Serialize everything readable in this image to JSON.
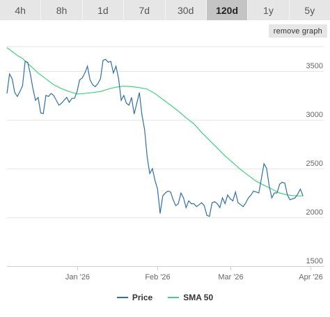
{
  "tabs": [
    {
      "label": "4h",
      "active": false
    },
    {
      "label": "8h",
      "active": false
    },
    {
      "label": "1d",
      "active": false
    },
    {
      "label": "7d",
      "active": false
    },
    {
      "label": "30d",
      "active": false
    },
    {
      "label": "120d",
      "active": true
    },
    {
      "label": "1y",
      "active": false
    },
    {
      "label": "5y",
      "active": false
    }
  ],
  "remove_graph_label": "remove graph",
  "colors": {
    "price": "#2f6fa8",
    "sma": "#3dd47a",
    "grid": "#e6e6e6"
  },
  "chart_data": {
    "type": "line",
    "title": "",
    "xlabel": "",
    "ylabel": "",
    "x_range": [
      "2025-12-05",
      "2026-04-06"
    ],
    "ylim": [
      1500,
      3750
    ],
    "y_ticks": [
      1500,
      2000,
      2500,
      3000,
      3500
    ],
    "x_ticks": [
      {
        "date": "2026-01-01",
        "label": "Jan '26"
      },
      {
        "date": "2026-02-01",
        "label": "Feb '26"
      },
      {
        "date": "2026-03-01",
        "label": "Mar '26"
      },
      {
        "date": "2026-04-01",
        "label": "Apr '26"
      }
    ],
    "grid": true,
    "legend": "bottom",
    "series": [
      {
        "name": "Price",
        "points": [
          [
            "2025-12-05",
            3270
          ],
          [
            "2025-12-06",
            3470
          ],
          [
            "2025-12-07",
            3420
          ],
          [
            "2025-12-08",
            3280
          ],
          [
            "2025-12-09",
            3240
          ],
          [
            "2025-12-10",
            3290
          ],
          [
            "2025-12-11",
            3350
          ],
          [
            "2025-12-12",
            3600
          ],
          [
            "2025-12-13",
            3590
          ],
          [
            "2025-12-14",
            3470
          ],
          [
            "2025-12-15",
            3320
          ],
          [
            "2025-12-16",
            3200
          ],
          [
            "2025-12-17",
            3230
          ],
          [
            "2025-12-18",
            3070
          ],
          [
            "2025-12-19",
            3065
          ],
          [
            "2025-12-20",
            3250
          ],
          [
            "2025-12-21",
            3240
          ],
          [
            "2025-12-22",
            3270
          ],
          [
            "2025-12-23",
            3250
          ],
          [
            "2025-12-24",
            3200
          ],
          [
            "2025-12-25",
            3150
          ],
          [
            "2025-12-26",
            3170
          ],
          [
            "2025-12-27",
            3200
          ],
          [
            "2025-12-28",
            3230
          ],
          [
            "2025-12-29",
            3180
          ],
          [
            "2025-12-30",
            3220
          ],
          [
            "2025-12-31",
            3220
          ],
          [
            "2026-01-01",
            3290
          ],
          [
            "2026-01-02",
            3410
          ],
          [
            "2026-01-03",
            3430
          ],
          [
            "2026-01-04",
            3480
          ],
          [
            "2026-01-05",
            3550
          ],
          [
            "2026-01-06",
            3410
          ],
          [
            "2026-01-07",
            3360
          ],
          [
            "2026-01-08",
            3340
          ],
          [
            "2026-01-09",
            3370
          ],
          [
            "2026-01-10",
            3420
          ],
          [
            "2026-01-11",
            3610
          ],
          [
            "2026-01-12",
            3620
          ],
          [
            "2026-01-13",
            3590
          ],
          [
            "2026-01-14",
            3600
          ],
          [
            "2026-01-15",
            3480
          ],
          [
            "2026-01-16",
            3550
          ],
          [
            "2026-01-17",
            3420
          ],
          [
            "2026-01-18",
            3200
          ],
          [
            "2026-01-19",
            3250
          ],
          [
            "2026-01-20",
            3170
          ],
          [
            "2026-01-21",
            3150
          ],
          [
            "2026-01-22",
            3230
          ],
          [
            "2026-01-23",
            3060
          ],
          [
            "2026-01-24",
            3170
          ],
          [
            "2026-01-25",
            3280
          ],
          [
            "2026-01-26",
            3050
          ],
          [
            "2026-01-27",
            2900
          ],
          [
            "2026-01-28",
            2620
          ],
          [
            "2026-01-29",
            2450
          ],
          [
            "2026-01-30",
            2500
          ],
          [
            "2026-01-31",
            2380
          ],
          [
            "2026-02-01",
            2290
          ],
          [
            "2026-02-02",
            2040
          ],
          [
            "2026-02-03",
            2220
          ],
          [
            "2026-02-04",
            2250
          ],
          [
            "2026-02-05",
            2270
          ],
          [
            "2026-02-06",
            2260
          ],
          [
            "2026-02-07",
            2180
          ],
          [
            "2026-02-08",
            2120
          ],
          [
            "2026-02-09",
            2140
          ],
          [
            "2026-02-10",
            2250
          ],
          [
            "2026-02-11",
            2200
          ],
          [
            "2026-02-12",
            2100
          ],
          [
            "2026-02-13",
            2170
          ],
          [
            "2026-02-14",
            2140
          ],
          [
            "2026-02-15",
            2140
          ],
          [
            "2026-02-16",
            2110
          ],
          [
            "2026-02-17",
            2130
          ],
          [
            "2026-02-18",
            2150
          ],
          [
            "2026-02-19",
            2120
          ],
          [
            "2026-02-20",
            2020
          ],
          [
            "2026-02-21",
            2010
          ],
          [
            "2026-02-22",
            2150
          ],
          [
            "2026-02-23",
            2160
          ],
          [
            "2026-02-24",
            2140
          ],
          [
            "2026-02-25",
            2100
          ],
          [
            "2026-02-26",
            2200
          ],
          [
            "2026-02-27",
            2140
          ],
          [
            "2026-02-28",
            2230
          ],
          [
            "2026-03-01",
            2190
          ],
          [
            "2026-03-02",
            2170
          ],
          [
            "2026-03-03",
            2260
          ],
          [
            "2026-03-04",
            2150
          ],
          [
            "2026-03-05",
            2130
          ],
          [
            "2026-03-06",
            2110
          ],
          [
            "2026-03-07",
            2150
          ],
          [
            "2026-03-08",
            2200
          ],
          [
            "2026-03-09",
            2230
          ],
          [
            "2026-03-10",
            2270
          ],
          [
            "2026-03-11",
            2260
          ],
          [
            "2026-03-12",
            2250
          ],
          [
            "2026-03-13",
            2400
          ],
          [
            "2026-03-14",
            2550
          ],
          [
            "2026-03-15",
            2500
          ],
          [
            "2026-03-16",
            2320
          ],
          [
            "2026-03-17",
            2200
          ],
          [
            "2026-03-18",
            2250
          ],
          [
            "2026-03-19",
            2250
          ],
          [
            "2026-03-20",
            2340
          ],
          [
            "2026-03-21",
            2360
          ],
          [
            "2026-03-22",
            2350
          ],
          [
            "2026-03-23",
            2230
          ],
          [
            "2026-03-24",
            2180
          ],
          [
            "2026-03-25",
            2190
          ],
          [
            "2026-03-26",
            2200
          ],
          [
            "2026-03-27",
            2240
          ],
          [
            "2026-03-28",
            2290
          ],
          [
            "2026-03-29",
            2220
          ]
        ]
      },
      {
        "name": "SMA 50",
        "points": [
          [
            "2025-12-05",
            3740
          ],
          [
            "2025-12-07",
            3700
          ],
          [
            "2025-12-09",
            3660
          ],
          [
            "2025-12-11",
            3630
          ],
          [
            "2025-12-13",
            3580
          ],
          [
            "2025-12-15",
            3530
          ],
          [
            "2025-12-17",
            3480
          ],
          [
            "2025-12-20",
            3420
          ],
          [
            "2025-12-23",
            3360
          ],
          [
            "2025-12-26",
            3320
          ],
          [
            "2025-12-29",
            3290
          ],
          [
            "2026-01-01",
            3265
          ],
          [
            "2026-01-04",
            3270
          ],
          [
            "2026-01-07",
            3280
          ],
          [
            "2026-01-10",
            3290
          ],
          [
            "2026-01-13",
            3315
          ],
          [
            "2026-01-16",
            3335
          ],
          [
            "2026-01-19",
            3345
          ],
          [
            "2026-01-22",
            3340
          ],
          [
            "2026-01-25",
            3330
          ],
          [
            "2026-01-28",
            3315
          ],
          [
            "2026-01-31",
            3270
          ],
          [
            "2026-02-03",
            3210
          ],
          [
            "2026-02-06",
            3150
          ],
          [
            "2026-02-09",
            3090
          ],
          [
            "2026-02-12",
            3020
          ],
          [
            "2026-02-15",
            2960
          ],
          [
            "2026-02-18",
            2870
          ],
          [
            "2026-02-21",
            2790
          ],
          [
            "2026-02-24",
            2710
          ],
          [
            "2026-02-27",
            2630
          ],
          [
            "2026-03-02",
            2560
          ],
          [
            "2026-03-05",
            2490
          ],
          [
            "2026-03-08",
            2430
          ],
          [
            "2026-03-11",
            2370
          ],
          [
            "2026-03-14",
            2330
          ],
          [
            "2026-03-17",
            2290
          ],
          [
            "2026-03-20",
            2250
          ],
          [
            "2026-03-23",
            2230
          ],
          [
            "2026-03-26",
            2220
          ],
          [
            "2026-03-29",
            2220
          ]
        ]
      }
    ]
  }
}
